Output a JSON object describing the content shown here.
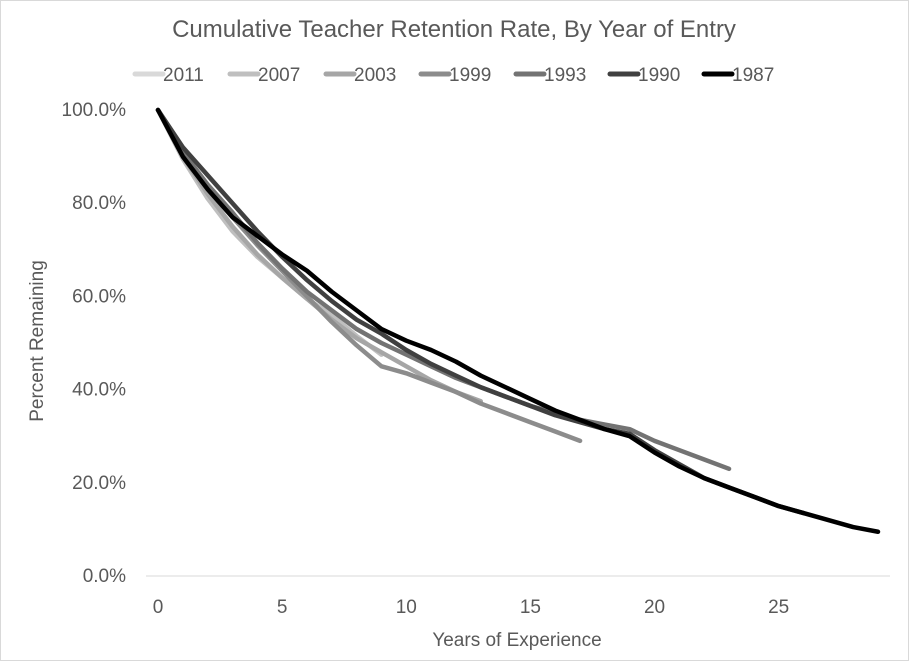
{
  "chart_data": {
    "type": "line",
    "title": "Cumulative Teacher Retention Rate, By Year of Entry",
    "xlabel": "Years of Experience",
    "ylabel": "Percent Remaining",
    "xlim": [
      0,
      29
    ],
    "ylim": [
      0,
      100
    ],
    "x_ticks": [
      "0",
      "5",
      "10",
      "15",
      "20",
      "25"
    ],
    "y_ticks": [
      "0.0%",
      "20.0%",
      "40.0%",
      "60.0%",
      "80.0%",
      "100.0%"
    ],
    "grid": false,
    "legend_position": "top",
    "series": [
      {
        "name": "2011",
        "color": "#d9d9d9",
        "points": [
          [
            0,
            100
          ],
          [
            1,
            90
          ],
          [
            2,
            82
          ],
          [
            3,
            75
          ]
        ]
      },
      {
        "name": "2007",
        "color": "#bfbfbf",
        "points": [
          [
            0,
            100
          ],
          [
            1,
            89.5
          ],
          [
            2,
            81
          ],
          [
            3,
            74
          ],
          [
            4,
            68.5
          ],
          [
            5,
            64
          ],
          [
            6,
            59.5
          ],
          [
            7,
            56
          ],
          [
            8,
            51.5
          ],
          [
            9,
            47.5
          ]
        ]
      },
      {
        "name": "2003",
        "color": "#a6a6a6",
        "points": [
          [
            0,
            100
          ],
          [
            1,
            90
          ],
          [
            2,
            82
          ],
          [
            3,
            75
          ],
          [
            4,
            69
          ],
          [
            5,
            64
          ],
          [
            6,
            59.5
          ],
          [
            7,
            55
          ],
          [
            8,
            51
          ],
          [
            9,
            48
          ],
          [
            10,
            45
          ],
          [
            11,
            42
          ],
          [
            12,
            39.5
          ],
          [
            13,
            37.5
          ]
        ]
      },
      {
        "name": "1999",
        "color": "#8c8c8c",
        "points": [
          [
            0,
            100
          ],
          [
            1,
            91
          ],
          [
            2,
            83
          ],
          [
            3,
            77
          ],
          [
            4,
            71
          ],
          [
            5,
            65.5
          ],
          [
            6,
            60
          ],
          [
            7,
            54.5
          ],
          [
            8,
            49.5
          ],
          [
            9,
            45
          ],
          [
            10,
            43.5
          ],
          [
            11,
            41.5
          ],
          [
            12,
            39.5
          ],
          [
            13,
            37
          ],
          [
            14,
            35
          ],
          [
            15,
            33
          ],
          [
            16,
            31
          ],
          [
            17,
            29
          ]
        ]
      },
      {
        "name": "1993",
        "color": "#737373",
        "points": [
          [
            0,
            100
          ],
          [
            1,
            91
          ],
          [
            2,
            84
          ],
          [
            3,
            78
          ],
          [
            4,
            71.5
          ],
          [
            5,
            66
          ],
          [
            6,
            61
          ],
          [
            7,
            57
          ],
          [
            8,
            53
          ],
          [
            9,
            50
          ],
          [
            10,
            47.5
          ],
          [
            11,
            45
          ],
          [
            12,
            42.5
          ],
          [
            13,
            40.5
          ],
          [
            14,
            38.5
          ],
          [
            15,
            36.5
          ],
          [
            16,
            35
          ],
          [
            17,
            33.5
          ],
          [
            18,
            32.5
          ],
          [
            19,
            31.5
          ],
          [
            20,
            29
          ],
          [
            21,
            27
          ],
          [
            22,
            25
          ],
          [
            23,
            23
          ]
        ]
      },
      {
        "name": "1990",
        "color": "#404040",
        "points": [
          [
            0,
            100
          ],
          [
            1,
            92
          ],
          [
            2,
            86
          ],
          [
            3,
            80
          ],
          [
            4,
            74
          ],
          [
            5,
            68.5
          ],
          [
            6,
            63.5
          ],
          [
            7,
            59
          ],
          [
            8,
            55
          ],
          [
            9,
            52
          ],
          [
            10,
            48.5
          ],
          [
            11,
            45.5
          ],
          [
            12,
            43
          ],
          [
            13,
            40.5
          ],
          [
            14,
            38.5
          ],
          [
            15,
            36.5
          ],
          [
            16,
            34.5
          ],
          [
            17,
            33
          ],
          [
            18,
            31.5
          ],
          [
            19,
            30.5
          ],
          [
            20,
            27
          ],
          [
            21,
            24
          ],
          [
            22,
            21
          ],
          [
            23,
            19
          ],
          [
            24,
            17
          ],
          [
            25,
            15
          ],
          [
            26,
            13.5
          ]
        ]
      },
      {
        "name": "1987",
        "color": "#000000",
        "points": [
          [
            0,
            100
          ],
          [
            1,
            90
          ],
          [
            2,
            83
          ],
          [
            3,
            77
          ],
          [
            4,
            73
          ],
          [
            5,
            69
          ],
          [
            6,
            65.5
          ],
          [
            7,
            61
          ],
          [
            8,
            57
          ],
          [
            9,
            53
          ],
          [
            10,
            50.5
          ],
          [
            11,
            48.5
          ],
          [
            12,
            46
          ],
          [
            13,
            43
          ],
          [
            14,
            40.5
          ],
          [
            15,
            38
          ],
          [
            16,
            35.5
          ],
          [
            17,
            33.5
          ],
          [
            18,
            31.5
          ],
          [
            19,
            30
          ],
          [
            20,
            26.5
          ],
          [
            21,
            23.5
          ],
          [
            22,
            21
          ],
          [
            23,
            19
          ],
          [
            24,
            17
          ],
          [
            25,
            15
          ],
          [
            26,
            13.5
          ],
          [
            27,
            12
          ],
          [
            28,
            10.5
          ],
          [
            29,
            9.5
          ]
        ]
      }
    ]
  }
}
